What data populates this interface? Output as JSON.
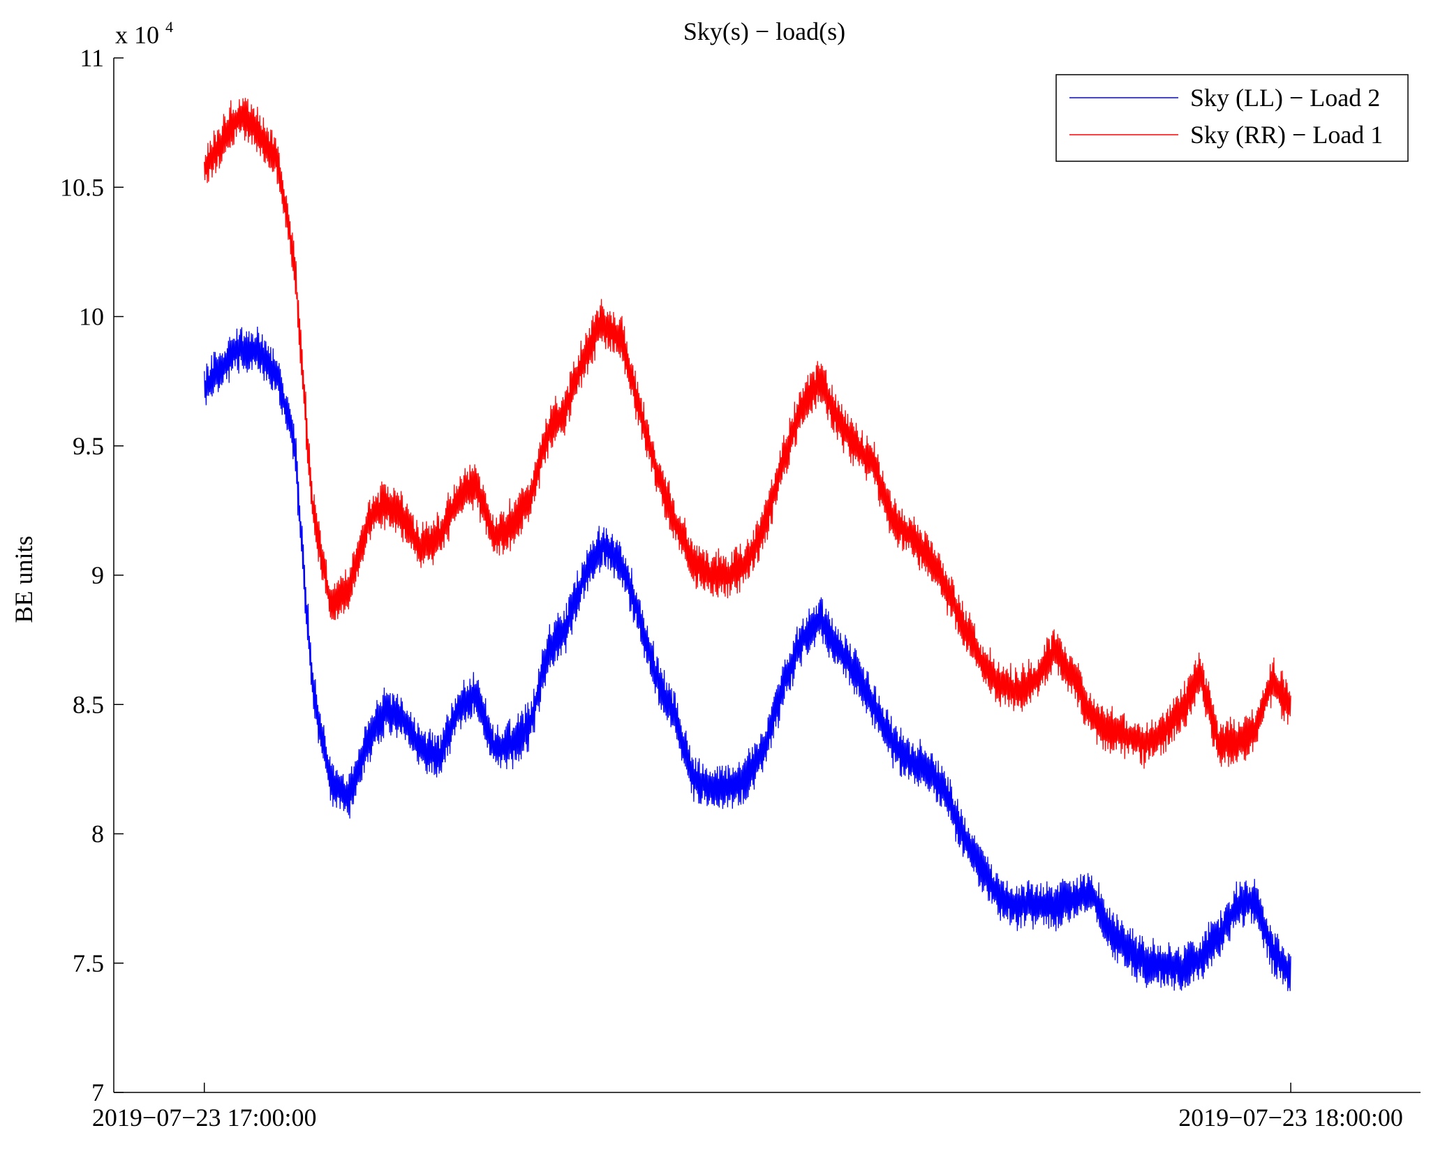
{
  "chart_data": {
    "type": "line",
    "title": "Sky(s) − load(s)",
    "ylabel": "BE units",
    "xlabel": "",
    "y_multiplier": "x 10",
    "y_multiplier_exponent": "4",
    "ylim": [
      7,
      11
    ],
    "xlim": [
      "2019-07-23 16:55:00",
      "2019-07-23 18:07:10"
    ],
    "y_ticks": [
      7,
      7.5,
      8,
      8.5,
      9,
      9.5,
      10,
      10.5,
      11
    ],
    "y_tick_labels": [
      "7",
      "7.5",
      "8",
      "8.5",
      "9",
      "9.5",
      "10",
      "10.5",
      "11"
    ],
    "x_ticks": [
      "2019-07-23 17:00:00",
      "2019-07-23 18:00:00"
    ],
    "x_tick_labels": [
      "2019−07−23 17:00:00",
      "2019−07−23 18:00:00"
    ],
    "grid": false,
    "legend_position": "top-right",
    "series": [
      {
        "name": "Sky (LL) − Load 2",
        "color": "#0000ff",
        "x_minutes_after_start": [
          0,
          1,
          1.5,
          2,
          3,
          3.5,
          4,
          5,
          5.5,
          6,
          7,
          8,
          9,
          10,
          11,
          12,
          13,
          14,
          15,
          16,
          17,
          18,
          19,
          20,
          21,
          22,
          23,
          24,
          25,
          26,
          27,
          28,
          29,
          30,
          31,
          32,
          33,
          34,
          35,
          36,
          37,
          38,
          39,
          40,
          41,
          42,
          43,
          44,
          45,
          46,
          47,
          48,
          49,
          50,
          51,
          52,
          53,
          54,
          55,
          56,
          57,
          58,
          59,
          60
        ],
        "y": [
          9.72,
          9.8,
          9.86,
          9.88,
          9.86,
          9.82,
          9.78,
          9.5,
          9.0,
          8.55,
          8.2,
          8.15,
          8.35,
          8.48,
          8.45,
          8.32,
          8.3,
          8.48,
          8.55,
          8.33,
          8.35,
          8.42,
          8.72,
          8.8,
          9.0,
          9.12,
          9.05,
          8.85,
          8.6,
          8.45,
          8.22,
          8.18,
          8.18,
          8.22,
          8.35,
          8.58,
          8.75,
          8.83,
          8.72,
          8.62,
          8.5,
          8.35,
          8.28,
          8.25,
          8.15,
          7.98,
          7.85,
          7.75,
          7.72,
          7.73,
          7.72,
          7.75,
          7.78,
          7.62,
          7.55,
          7.5,
          7.5,
          7.48,
          7.52,
          7.6,
          7.72,
          7.75,
          7.55,
          7.45
        ]
      },
      {
        "name": "Sky (RR) − Load 1",
        "color": "#ff0000",
        "x_minutes_after_start": [
          0,
          1,
          1.5,
          2,
          3,
          3.5,
          4,
          5,
          5.5,
          6,
          7,
          8,
          9,
          10,
          11,
          12,
          13,
          14,
          15,
          16,
          17,
          18,
          19,
          20,
          21,
          22,
          23,
          24,
          25,
          26,
          27,
          28,
          29,
          30,
          31,
          32,
          33,
          34,
          35,
          36,
          37,
          38,
          39,
          40,
          41,
          42,
          43,
          44,
          45,
          46,
          47,
          48,
          49,
          50,
          51,
          52,
          53,
          54,
          55,
          56,
          57,
          58,
          59,
          60
        ],
        "y": [
          10.57,
          10.68,
          10.75,
          10.77,
          10.72,
          10.65,
          10.62,
          10.2,
          9.7,
          9.25,
          8.88,
          8.95,
          9.2,
          9.28,
          9.22,
          9.1,
          9.15,
          9.3,
          9.35,
          9.15,
          9.2,
          9.3,
          9.55,
          9.65,
          9.85,
          9.98,
          9.92,
          9.65,
          9.4,
          9.2,
          9.05,
          9.0,
          9.0,
          9.05,
          9.2,
          9.45,
          9.65,
          9.75,
          9.6,
          9.5,
          9.42,
          9.22,
          9.15,
          9.08,
          8.95,
          8.8,
          8.65,
          8.58,
          8.55,
          8.6,
          8.72,
          8.6,
          8.45,
          8.4,
          8.38,
          8.35,
          8.4,
          8.48,
          8.62,
          8.35,
          8.35,
          8.4,
          8.6,
          8.48
        ]
      }
    ]
  }
}
